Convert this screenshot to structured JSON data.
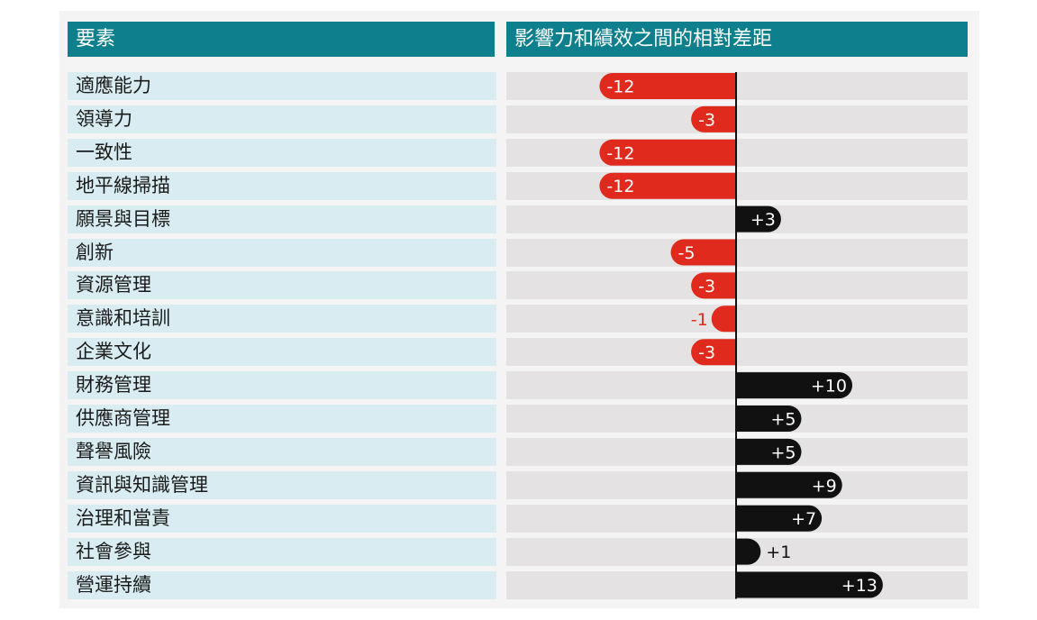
{
  "header": {
    "left_label": "要素",
    "right_label": "影響力和績效之間的相對差距"
  },
  "colors": {
    "header_bg": "#0e7f8c",
    "label_bg": "#d8ecf1",
    "track_bg": "#e4e2e2",
    "negative": "#e02a1d",
    "positive": "#111111"
  },
  "chart_data": {
    "type": "bar",
    "orientation": "horizontal",
    "title": "",
    "xlabel": "",
    "ylabel": "",
    "xlim": [
      -15,
      15
    ],
    "grid": false,
    "categories": [
      "適應能力",
      "領導力",
      "一致性",
      "地平線掃描",
      "願景與目標",
      "創新",
      "資源管理",
      "意識和培訓",
      "企業文化",
      "財務管理",
      "供應商管理",
      "聲譽風險",
      "資訊與知識管理",
      "治理和當責",
      "社會參與",
      "營運持續"
    ],
    "values": [
      -12,
      -3,
      -12,
      -12,
      3,
      -5,
      -3,
      -1,
      -3,
      10,
      5,
      5,
      9,
      7,
      1,
      13
    ],
    "data_labels": [
      "-12",
      "-3",
      "-12",
      "-12",
      "+3",
      "-5",
      "-3",
      "-1",
      "-3",
      "+10",
      "+5",
      "+5",
      "+9",
      "+7",
      "+1",
      "+13"
    ]
  }
}
